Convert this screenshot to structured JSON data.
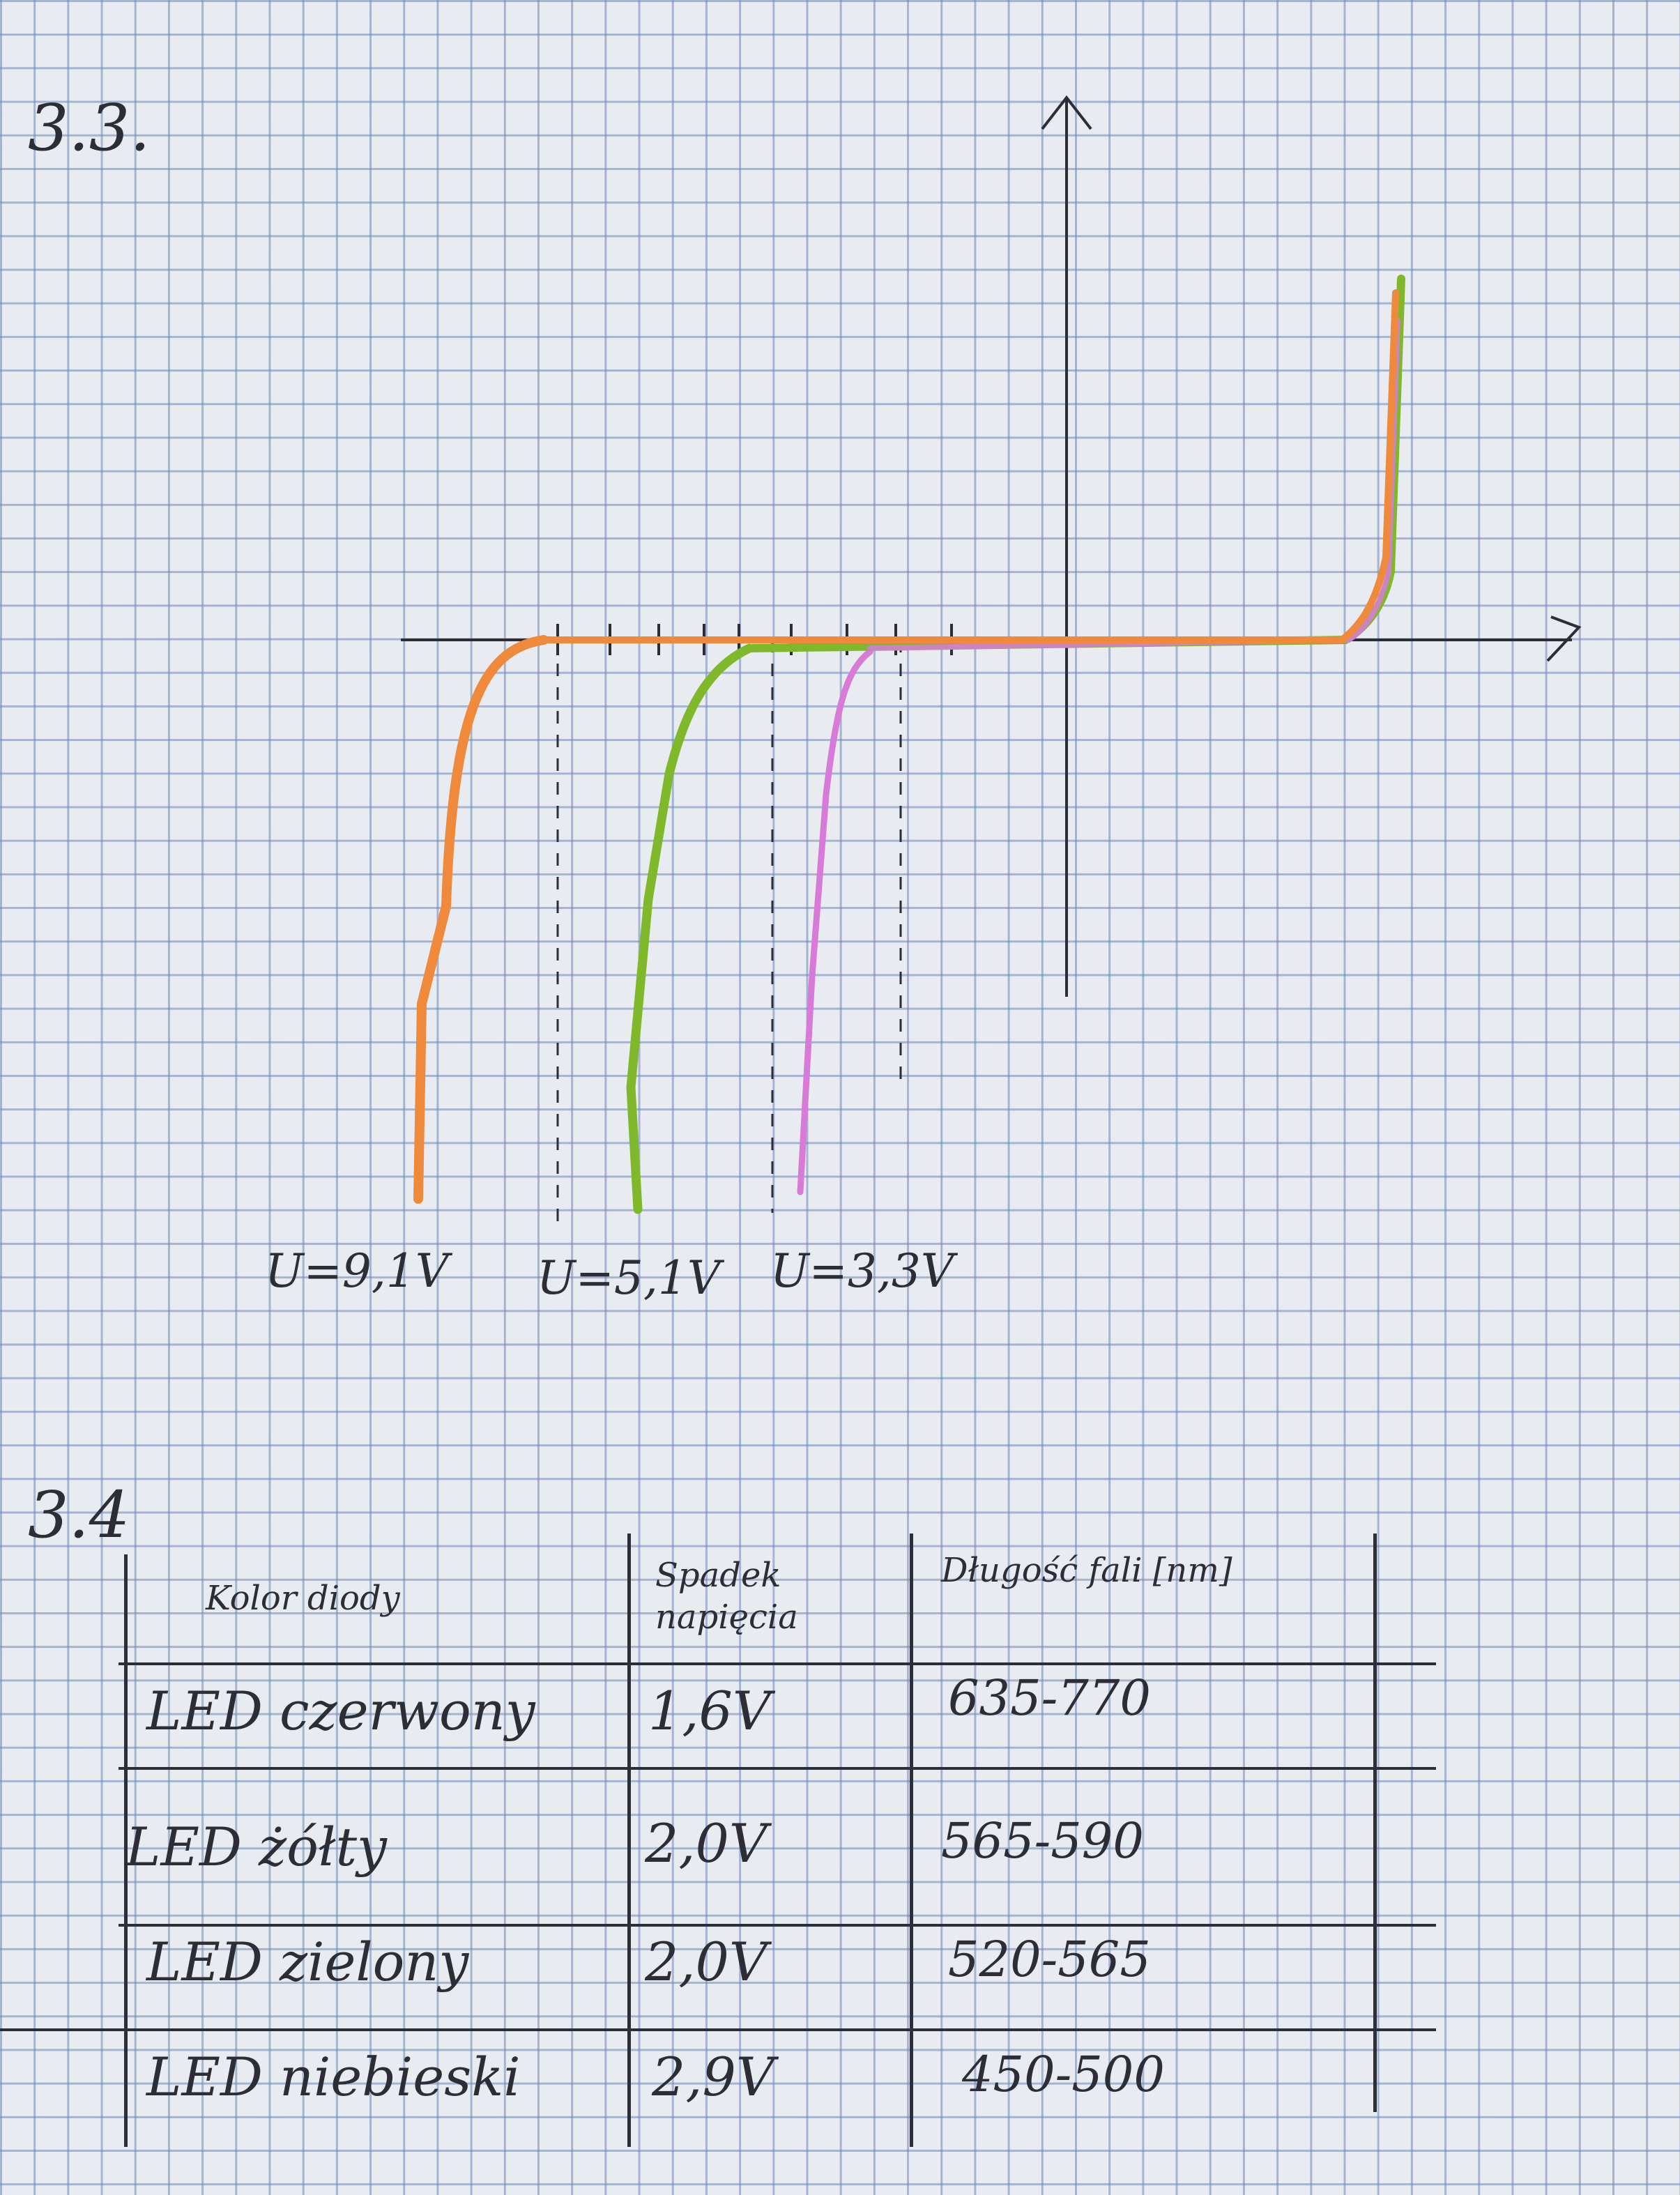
{
  "section_heading_iv": "3.3.",
  "section_heading_table": "3.4",
  "plot_labels": {
    "orange": "U=9,1V",
    "green": "U=5,1V",
    "violet": "U=3,3V"
  },
  "colors": {
    "orange": "#ef8a3c",
    "green": "#7fb82a",
    "violet": "#d77ad8",
    "ink": "#2d2d36"
  },
  "table": {
    "headers": [
      "Kolor diody",
      "Spadek napięcia",
      "Długość fali [nm]"
    ],
    "rows": [
      {
        "name": "LED czerwony",
        "drop": "1,6V",
        "wave": "635-770"
      },
      {
        "name": "LED żółty",
        "drop": "2,0V",
        "wave": "565-590"
      },
      {
        "name": "LED zielony",
        "drop": "2,0V",
        "wave": "520-565"
      },
      {
        "name": "LED niebieski",
        "drop": "2,9V",
        "wave": "450-500"
      }
    ]
  }
}
